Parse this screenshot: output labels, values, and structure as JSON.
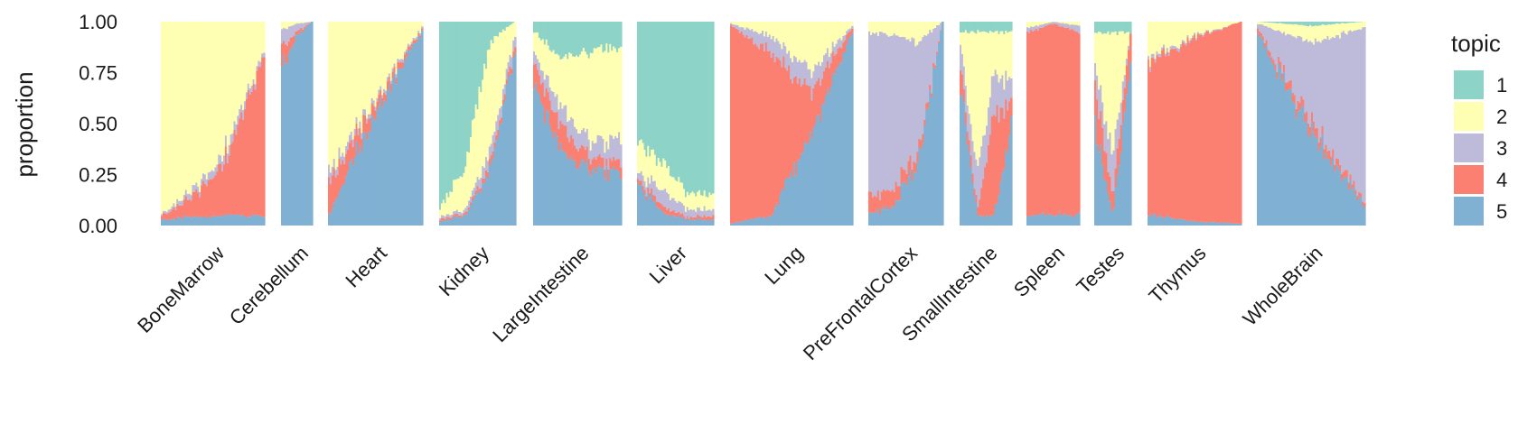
{
  "chart_data": {
    "type": "bar",
    "stacked": true,
    "ylabel": "proportion",
    "xlabel": "",
    "ylim": [
      0,
      1
    ],
    "y_ticks": [
      "0.00",
      "0.25",
      "0.50",
      "0.75",
      "1.00"
    ],
    "legend": {
      "title": "topic",
      "placement": "right",
      "entries": [
        {
          "label": "1",
          "color": "#8dd3c7"
        },
        {
          "label": "2",
          "color": "#ffffb3"
        },
        {
          "label": "3",
          "color": "#bebada"
        },
        {
          "label": "4",
          "color": "#fb8072"
        },
        {
          "label": "5",
          "color": "#80b1d3"
        }
      ]
    },
    "stack_order_bottom_to_top": [
      "5",
      "4",
      "3",
      "2",
      "1"
    ],
    "facets": [
      {
        "name": "BoneMarrow",
        "n": 60,
        "series": {
          "5": [
            0.03,
            0.04,
            0.05,
            0.05
          ],
          "4": [
            0.02,
            0.1,
            0.3,
            0.82
          ],
          "3": [
            0.01,
            0.03,
            0.05,
            0.02
          ],
          "2": [
            0.94,
            0.83,
            0.6,
            0.14
          ],
          "1": [
            0,
            0,
            0,
            0
          ]
        }
      },
      {
        "name": "Cerebellum",
        "n": 18,
        "series": {
          "5": [
            0.78,
            0.93,
            1.0
          ],
          "4": [
            0.1,
            0.02,
            0
          ],
          "3": [
            0.08,
            0.04,
            0
          ],
          "2": [
            0.04,
            0.01,
            0
          ],
          "1": [
            0,
            0,
            0
          ]
        }
      },
      {
        "name": "Heart",
        "n": 55,
        "series": {
          "5": [
            0.05,
            0.55,
            0.95
          ],
          "4": [
            0.15,
            0.05,
            0.01
          ],
          "3": [
            0.05,
            0.02,
            0.01
          ],
          "2": [
            0.75,
            0.38,
            0.03
          ],
          "1": [
            0,
            0,
            0
          ]
        }
      },
      {
        "name": "Kidney",
        "n": 45,
        "series": {
          "5": [
            0.02,
            0.05,
            0.25,
            0.85
          ],
          "4": [
            0.01,
            0.01,
            0.03,
            0.03
          ],
          "3": [
            0.01,
            0.02,
            0.07,
            0.05
          ],
          "2": [
            0.05,
            0.2,
            0.55,
            0.07
          ],
          "1": [
            0.91,
            0.72,
            0.1,
            0
          ]
        }
      },
      {
        "name": "LargeIntestine",
        "n": 50,
        "series": {
          "5": [
            0.7,
            0.35,
            0.28,
            0.25
          ],
          "4": [
            0.1,
            0.12,
            0.05,
            0.05
          ],
          "3": [
            0.05,
            0.1,
            0.08,
            0.12
          ],
          "2": [
            0.1,
            0.25,
            0.45,
            0.45
          ],
          "1": [
            0.05,
            0.18,
            0.14,
            0.13
          ]
        }
      },
      {
        "name": "Liver",
        "n": 45,
        "series": {
          "5": [
            0.2,
            0.06,
            0.03,
            0.03
          ],
          "4": [
            0.02,
            0.03,
            0.01,
            0.02
          ],
          "3": [
            0.03,
            0.08,
            0.04,
            0.03
          ],
          "2": [
            0.15,
            0.13,
            0.08,
            0.07
          ],
          "1": [
            0.6,
            0.7,
            0.84,
            0.85
          ]
        }
      },
      {
        "name": "Lung",
        "n": 70,
        "series": {
          "5": [
            0.01,
            0.05,
            0.45,
            0.95
          ],
          "4": [
            0.97,
            0.8,
            0.2,
            0.02
          ],
          "3": [
            0.01,
            0.08,
            0.1,
            0.01
          ],
          "2": [
            0.01,
            0.07,
            0.25,
            0.02
          ],
          "1": [
            0,
            0,
            0,
            0
          ]
        }
      },
      {
        "name": "PreFrontalCortex",
        "n": 42,
        "series": {
          "5": [
            0.05,
            0.1,
            0.3,
            1.0
          ],
          "4": [
            0.08,
            0.08,
            0.05,
            0
          ],
          "3": [
            0.82,
            0.75,
            0.55,
            0
          ],
          "2": [
            0.05,
            0.07,
            0.1,
            0
          ],
          "1": [
            0,
            0,
            0,
            0
          ]
        }
      },
      {
        "name": "SmallIntestine",
        "n": 30,
        "series": {
          "5": [
            0.7,
            0.05,
            0.05,
            0.5
          ],
          "4": [
            0.1,
            0.03,
            0.5,
            0.1
          ],
          "3": [
            0.1,
            0.2,
            0.2,
            0.1
          ],
          "2": [
            0.05,
            0.67,
            0.2,
            0.25
          ],
          "1": [
            0.05,
            0.05,
            0.05,
            0.05
          ]
        }
      },
      {
        "name": "Spleen",
        "n": 30,
        "series": {
          "5": [
            0.05,
            0.05,
            0.05
          ],
          "4": [
            0.9,
            0.94,
            0.9
          ],
          "3": [
            0.02,
            0.01,
            0.03
          ],
          "2": [
            0.03,
            0,
            0.02
          ],
          "1": [
            0,
            0,
            0
          ]
        }
      },
      {
        "name": "Testes",
        "n": 20,
        "series": {
          "5": [
            0.5,
            0.05,
            0.8
          ],
          "4": [
            0.2,
            0.1,
            0.15
          ],
          "3": [
            0.1,
            0.2,
            0
          ],
          "2": [
            0.15,
            0.6,
            0
          ],
          "1": [
            0.05,
            0.05,
            0.05
          ]
        }
      },
      {
        "name": "Thymus",
        "n": 55,
        "series": {
          "5": [
            0.05,
            0.02,
            0.01
          ],
          "4": [
            0.75,
            0.9,
            0.99
          ],
          "3": [
            0.02,
            0.01,
            0
          ],
          "2": [
            0.18,
            0.07,
            0
          ],
          "1": [
            0,
            0,
            0
          ]
        }
      },
      {
        "name": "WholeBrain",
        "n": 62,
        "series": {
          "5": [
            0.95,
            0.45,
            0.1
          ],
          "4": [
            0.02,
            0.05,
            0.02
          ],
          "3": [
            0.02,
            0.4,
            0.85
          ],
          "2": [
            0.01,
            0.08,
            0.03
          ],
          "1": [
            0,
            0.02,
            0
          ]
        }
      }
    ]
  }
}
